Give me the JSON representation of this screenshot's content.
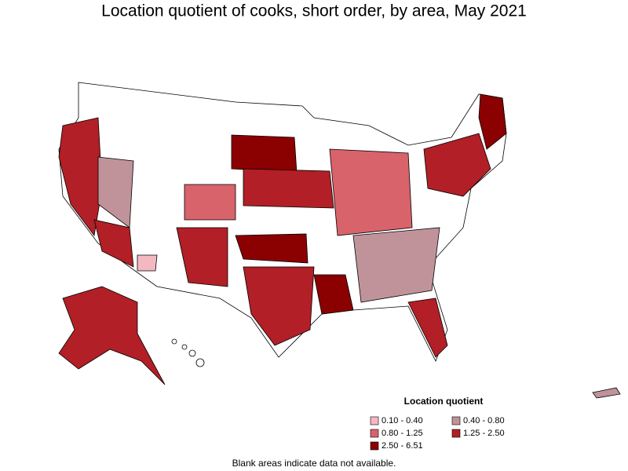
{
  "title": "Location quotient of cooks, short order, by area, May 2021",
  "legend": {
    "title": "Location quotient",
    "items": [
      {
        "label": "0.10 - 0.40",
        "color": "#f4b8c3"
      },
      {
        "label": "0.80 - 1.25",
        "color": "#d8636b"
      },
      {
        "label": "2.50 - 6.51",
        "color": "#8b0000"
      },
      {
        "label": "0.40 - 0.80",
        "color": "#c0939a"
      },
      {
        "label": "1.25 - 2.50",
        "color": "#b21f26"
      }
    ]
  },
  "note": "Blank areas indicate data not available."
}
